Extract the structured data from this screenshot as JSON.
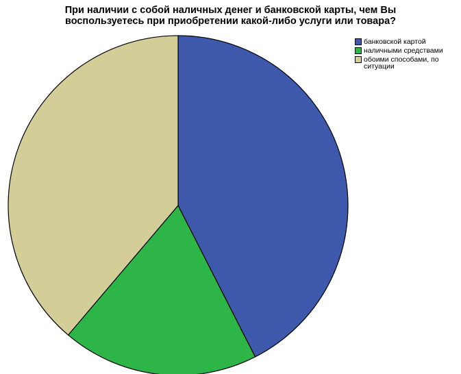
{
  "chart_data": {
    "type": "pie",
    "title_lines": [
      "При наличии с собой наличных денег и банковской карты, чем Вы",
      "воспользуетесь при приобретении какой-либо услуги или товара?"
    ],
    "slices": [
      {
        "label": "банковской картой",
        "value": 42.5,
        "color": "#3e58ac"
      },
      {
        "label": "наличными средствами",
        "value": 18.7,
        "color": "#2db547"
      },
      {
        "label": "обоими способами, по ситуации",
        "value": 38.8,
        "color": "#d3ce98"
      }
    ],
    "legend_position": "top-right"
  }
}
